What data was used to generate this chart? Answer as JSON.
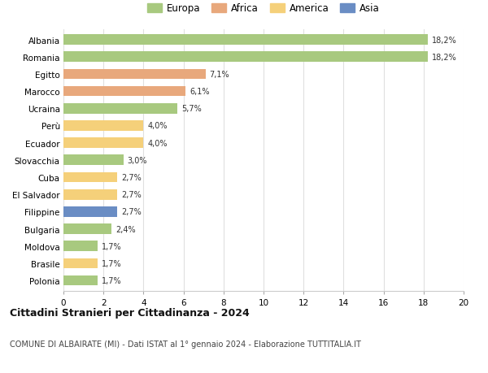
{
  "countries": [
    "Albania",
    "Romania",
    "Egitto",
    "Marocco",
    "Ucraina",
    "Perù",
    "Ecuador",
    "Slovacchia",
    "Cuba",
    "El Salvador",
    "Filippine",
    "Bulgaria",
    "Moldova",
    "Brasile",
    "Polonia"
  ],
  "values": [
    18.2,
    18.2,
    7.1,
    6.1,
    5.7,
    4.0,
    4.0,
    3.0,
    2.7,
    2.7,
    2.7,
    2.4,
    1.7,
    1.7,
    1.7
  ],
  "labels": [
    "18,2%",
    "18,2%",
    "7,1%",
    "6,1%",
    "5,7%",
    "4,0%",
    "4,0%",
    "3,0%",
    "2,7%",
    "2,7%",
    "2,7%",
    "2,4%",
    "1,7%",
    "1,7%",
    "1,7%"
  ],
  "continents": [
    "Europa",
    "Europa",
    "Africa",
    "Africa",
    "Europa",
    "America",
    "America",
    "Europa",
    "America",
    "America",
    "Asia",
    "Europa",
    "Europa",
    "America",
    "Europa"
  ],
  "colors": {
    "Europa": "#a8c97f",
    "Africa": "#e8a87c",
    "America": "#f5d07a",
    "Asia": "#6a8dc4"
  },
  "legend_order": [
    "Europa",
    "Africa",
    "America",
    "Asia"
  ],
  "title": "Cittadini Stranieri per Cittadinanza - 2024",
  "subtitle": "COMUNE DI ALBAIRATE (MI) - Dati ISTAT al 1° gennaio 2024 - Elaborazione TUTTITALIA.IT",
  "xlim": [
    0,
    20
  ],
  "xticks": [
    0,
    2,
    4,
    6,
    8,
    10,
    12,
    14,
    16,
    18,
    20
  ],
  "background_color": "#ffffff",
  "grid_color": "#e0e0e0",
  "bar_height": 0.6
}
